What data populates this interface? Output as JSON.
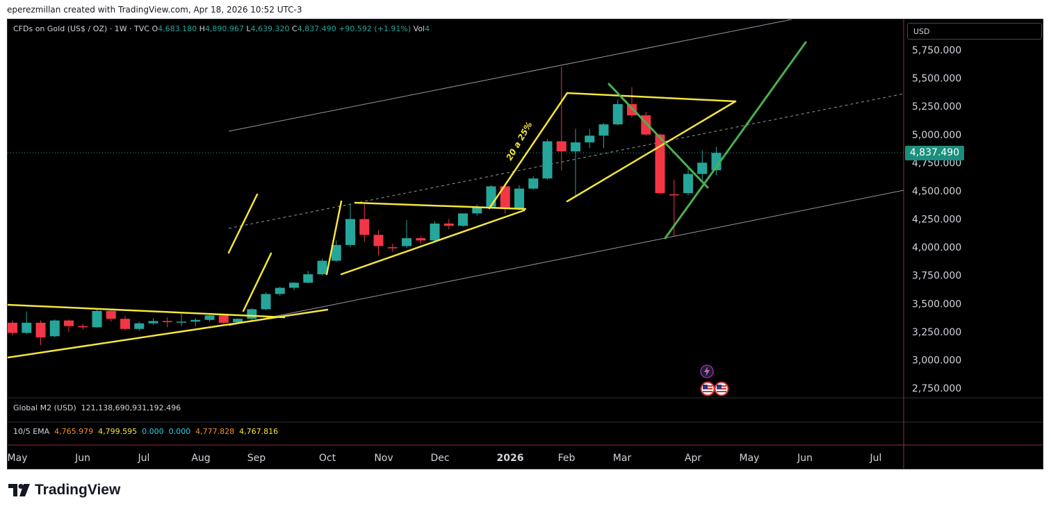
{
  "header": {
    "attribution": "eperezmillan created with TradingView.com, Apr 18, 2026 10:52 UTC-3"
  },
  "legend": {
    "symbol": "CFDs on Gold (US$ / OZ) · 1W · TVC",
    "o_label": "O",
    "o_value": "4,683.180",
    "h_label": "H",
    "h_value": "4,890.967",
    "l_label": "L",
    "l_value": "4,639.320",
    "c_label": "C",
    "c_value": "4,837.490",
    "change": "+90.592 (+1.91%)",
    "vol_label": "Vol",
    "vol_value": "4"
  },
  "currency": "USD",
  "last_price": "4,837.490",
  "indicators": {
    "m2_label": "Global M2 (USD)",
    "m2_value": "121,138,690,931,192.496",
    "ema_label": "10/5 EMA",
    "ema_values": [
      "4,765.979",
      "4,799.595",
      "0.000",
      "0.000",
      "4,777.828",
      "4,767.816"
    ]
  },
  "annotation_text": "20 a 25%",
  "branding": "TradingView",
  "colors": {
    "up": "#26a69a",
    "down": "#f23645",
    "trend_yellow": "#f5e63b",
    "trend_green": "#4caf50",
    "channel": "#9598a1",
    "background": "#000000"
  },
  "chart_data": {
    "type": "candlestick",
    "interval": "1W",
    "symbol": "CFDs on Gold (US$ / OZ)",
    "y_ticks": [
      "5,750.000",
      "5,500.000",
      "5,250.000",
      "5,000.000",
      "4,750.000",
      "4,500.000",
      "4,250.000",
      "4,000.000",
      "3,750.000",
      "3,500.000",
      "3,250.000",
      "3,000.000",
      "2,750.000"
    ],
    "x_ticks": [
      {
        "label": "May",
        "bold": false
      },
      {
        "label": "Jun",
        "bold": false
      },
      {
        "label": "Jul",
        "bold": false
      },
      {
        "label": "Aug",
        "bold": false
      },
      {
        "label": "Sep",
        "bold": false
      },
      {
        "label": "Oct",
        "bold": false
      },
      {
        "label": "Nov",
        "bold": false
      },
      {
        "label": "Dec",
        "bold": false
      },
      {
        "label": "2026",
        "bold": true
      },
      {
        "label": "Feb",
        "bold": false
      },
      {
        "label": "Mar",
        "bold": false
      },
      {
        "label": "Apr",
        "bold": false
      },
      {
        "label": "May",
        "bold": false
      },
      {
        "label": "Jun",
        "bold": false
      },
      {
        "label": "Jul",
        "bold": false
      }
    ],
    "candles": [
      {
        "o": 3330,
        "h": 3350,
        "l": 3220,
        "c": 3240
      },
      {
        "o": 3240,
        "h": 3430,
        "l": 3230,
        "c": 3330
      },
      {
        "o": 3330,
        "h": 3350,
        "l": 3130,
        "c": 3200
      },
      {
        "o": 3210,
        "h": 3360,
        "l": 3200,
        "c": 3350
      },
      {
        "o": 3350,
        "h": 3360,
        "l": 3250,
        "c": 3300
      },
      {
        "o": 3300,
        "h": 3320,
        "l": 3270,
        "c": 3290
      },
      {
        "o": 3290,
        "h": 3450,
        "l": 3285,
        "c": 3435
      },
      {
        "o": 3435,
        "h": 3450,
        "l": 3340,
        "c": 3365
      },
      {
        "o": 3365,
        "h": 3390,
        "l": 3260,
        "c": 3275
      },
      {
        "o": 3275,
        "h": 3340,
        "l": 3260,
        "c": 3325
      },
      {
        "o": 3325,
        "h": 3370,
        "l": 3310,
        "c": 3345
      },
      {
        "o": 3345,
        "h": 3380,
        "l": 3290,
        "c": 3335
      },
      {
        "o": 3335,
        "h": 3410,
        "l": 3300,
        "c": 3340
      },
      {
        "o": 3340,
        "h": 3370,
        "l": 3300,
        "c": 3355
      },
      {
        "o": 3355,
        "h": 3410,
        "l": 3340,
        "c": 3395
      },
      {
        "o": 3395,
        "h": 3410,
        "l": 3320,
        "c": 3330
      },
      {
        "o": 3335,
        "h": 3370,
        "l": 3320,
        "c": 3365
      },
      {
        "o": 3365,
        "h": 3460,
        "l": 3350,
        "c": 3450
      },
      {
        "o": 3450,
        "h": 3600,
        "l": 3440,
        "c": 3585
      },
      {
        "o": 3585,
        "h": 3650,
        "l": 3570,
        "c": 3640
      },
      {
        "o": 3640,
        "h": 3690,
        "l": 3620,
        "c": 3685
      },
      {
        "o": 3685,
        "h": 3790,
        "l": 3680,
        "c": 3760
      },
      {
        "o": 3760,
        "h": 3900,
        "l": 3750,
        "c": 3880
      },
      {
        "o": 3880,
        "h": 4060,
        "l": 3870,
        "c": 4020
      },
      {
        "o": 4020,
        "h": 4380,
        "l": 4000,
        "c": 4250
      },
      {
        "o": 4250,
        "h": 4380,
        "l": 4050,
        "c": 4110
      },
      {
        "o": 4110,
        "h": 4150,
        "l": 3930,
        "c": 4010
      },
      {
        "o": 4000,
        "h": 4030,
        "l": 3960,
        "c": 3995
      },
      {
        "o": 4010,
        "h": 4240,
        "l": 3990,
        "c": 4080
      },
      {
        "o": 4080,
        "h": 4100,
        "l": 4030,
        "c": 4060
      },
      {
        "o": 4060,
        "h": 4230,
        "l": 4050,
        "c": 4210
      },
      {
        "o": 4210,
        "h": 4250,
        "l": 4160,
        "c": 4190
      },
      {
        "o": 4190,
        "h": 4300,
        "l": 4180,
        "c": 4300
      },
      {
        "o": 4300,
        "h": 4380,
        "l": 4280,
        "c": 4360
      },
      {
        "o": 4360,
        "h": 4550,
        "l": 4350,
        "c": 4540
      },
      {
        "o": 4540,
        "h": 4560,
        "l": 4300,
        "c": 4340
      },
      {
        "o": 4340,
        "h": 4550,
        "l": 4330,
        "c": 4520
      },
      {
        "o": 4520,
        "h": 4630,
        "l": 4510,
        "c": 4610
      },
      {
        "o": 4610,
        "h": 4960,
        "l": 4600,
        "c": 4940
      },
      {
        "o": 4940,
        "h": 5600,
        "l": 4680,
        "c": 4850
      },
      {
        "o": 4850,
        "h": 5050,
        "l": 4440,
        "c": 4930
      },
      {
        "o": 4930,
        "h": 5050,
        "l": 4880,
        "c": 4990
      },
      {
        "o": 4990,
        "h": 5100,
        "l": 4880,
        "c": 5090
      },
      {
        "o": 5090,
        "h": 5310,
        "l": 5080,
        "c": 5270
      },
      {
        "o": 5270,
        "h": 5420,
        "l": 5150,
        "c": 5170
      },
      {
        "o": 5170,
        "h": 5200,
        "l": 4990,
        "c": 5000
      },
      {
        "o": 5000,
        "h": 5010,
        "l": 4470,
        "c": 4480
      },
      {
        "o": 4470,
        "h": 4600,
        "l": 4100,
        "c": 4460
      },
      {
        "o": 4480,
        "h": 4720,
        "l": 4460,
        "c": 4650
      },
      {
        "o": 4650,
        "h": 4860,
        "l": 4580,
        "c": 4750
      },
      {
        "o": 4683.18,
        "h": 4890.967,
        "l": 4639.32,
        "c": 4837.49
      }
    ]
  }
}
